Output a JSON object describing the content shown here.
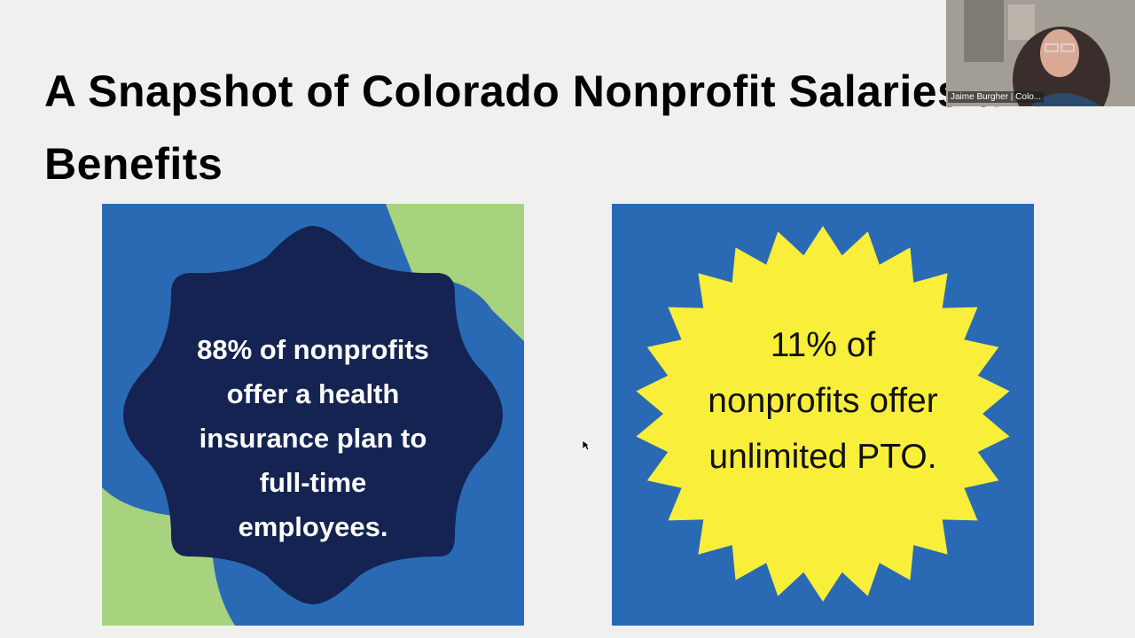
{
  "slide": {
    "title": "A Snapshot of Colorado Nonprofit Salaries and Benefits",
    "cards": [
      {
        "lines": [
          "88% of nonprofits",
          "offer a health",
          "insurance plan to",
          "full-time",
          "employees."
        ]
      },
      {
        "lines": [
          "11% of",
          "nonprofits offer",
          "unlimited PTO."
        ]
      }
    ]
  },
  "webcam": {
    "label": "Jaime Burgher | Colo..."
  }
}
